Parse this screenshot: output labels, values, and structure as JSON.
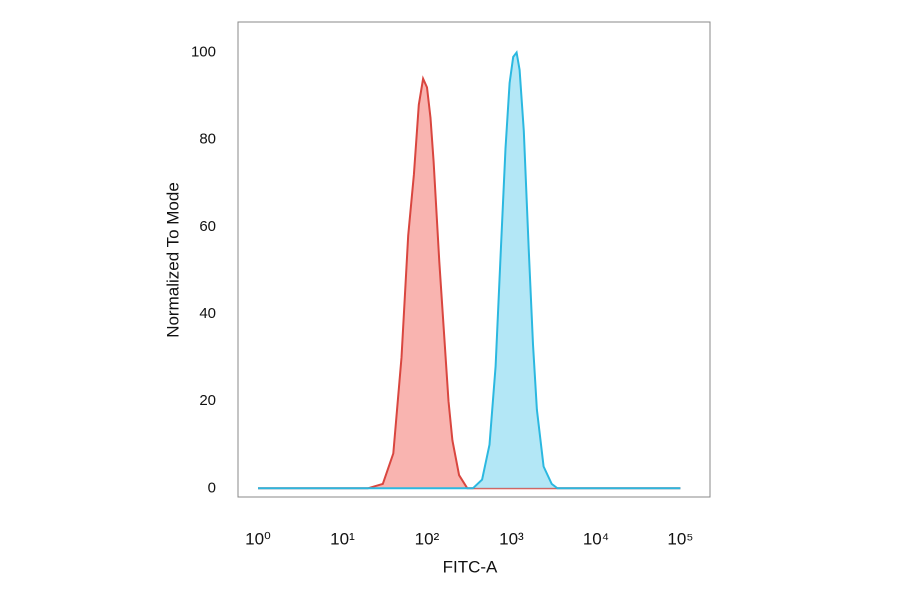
{
  "chart_data": {
    "type": "histogram-overlay",
    "x_label": "FITC-A",
    "y_label": "Normalized To Mode",
    "x_scale": "log",
    "xlim": [
      0.58,
      224000
    ],
    "xticks": [
      {
        "value": 1,
        "label": "10⁰"
      },
      {
        "value": 10,
        "label": "10¹"
      },
      {
        "value": 100,
        "label": "10²"
      },
      {
        "value": 1000,
        "label": "10³"
      },
      {
        "value": 10000,
        "label": "10⁴"
      },
      {
        "value": 100000,
        "label": "10⁵"
      }
    ],
    "ylim": [
      -2,
      107
    ],
    "yticks": [
      0,
      20,
      40,
      60,
      80,
      100
    ],
    "grid": false,
    "series": [
      {
        "color": "#d9463f",
        "fill": "#f8a7a2",
        "x": [
          1,
          20,
          30,
          40,
          50,
          60,
          70,
          80,
          90,
          100,
          110,
          120,
          140,
          160,
          180,
          200,
          240,
          300,
          100000
        ],
        "values": [
          0,
          0,
          1,
          8,
          30,
          58,
          72,
          88,
          94,
          92,
          85,
          75,
          52,
          35,
          20,
          11,
          3,
          0,
          0
        ]
      },
      {
        "color": "#2bb8e0",
        "fill": "#a6e3f5",
        "x": [
          1,
          350,
          450,
          550,
          650,
          750,
          850,
          950,
          1050,
          1150,
          1250,
          1400,
          1600,
          1800,
          2000,
          2400,
          3000,
          3500,
          100000
        ],
        "values": [
          0,
          0,
          2,
          10,
          28,
          55,
          78,
          93,
          99,
          100,
          96,
          82,
          55,
          33,
          18,
          5,
          1,
          0,
          0
        ]
      }
    ]
  }
}
